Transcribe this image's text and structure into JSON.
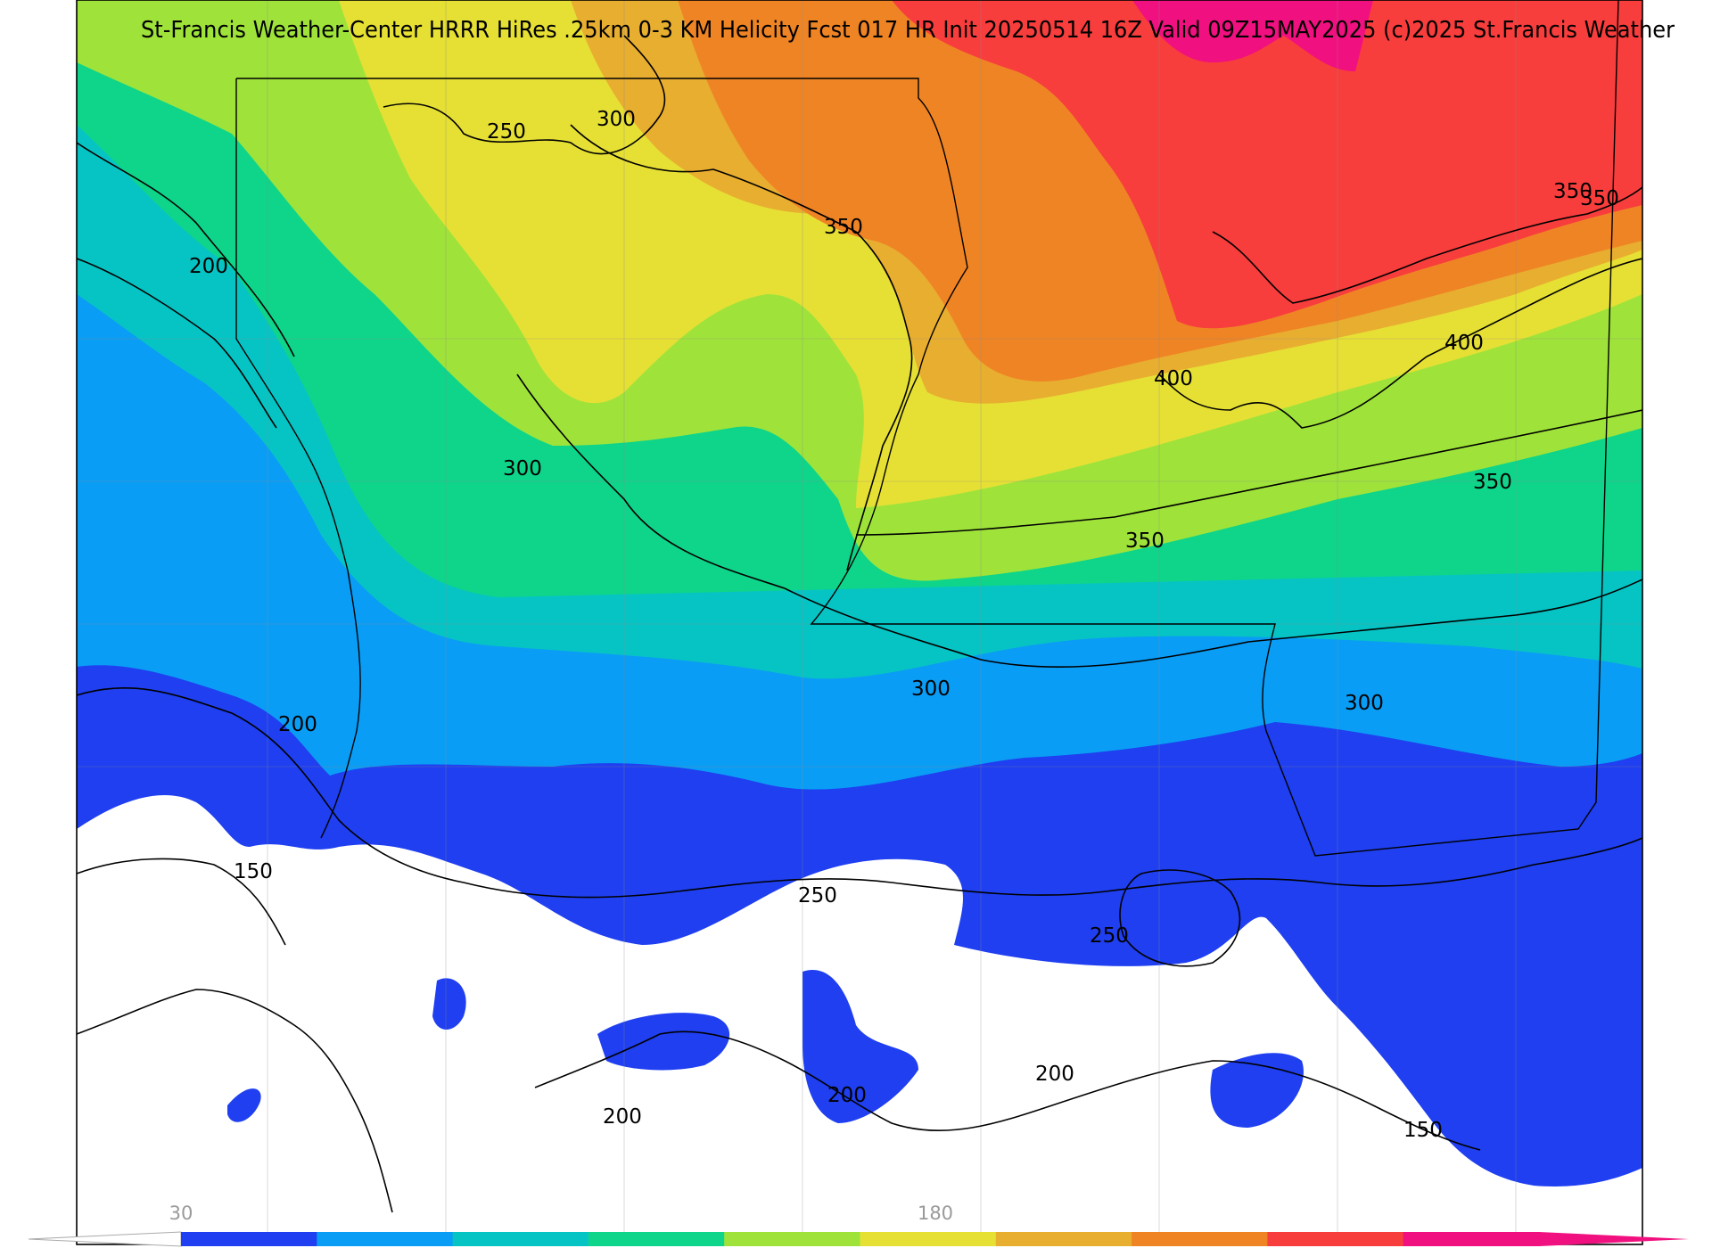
{
  "title": "St-Francis Weather-Center HRRR HiRes .25km 0-3 KM Helicity Fcst 017 HR Init 20250514 16Z  Valid 09Z15MAY2025    (c)2025 St.Francis Weather",
  "colorbar": {
    "tick_labels": [
      "30",
      "180"
    ],
    "colors": [
      "#1f3ff0",
      "#0a9df5",
      "#06c4c4",
      "#0ed58a",
      "#9fe33a",
      "#e6e035",
      "#e8ae30",
      "#ef8425",
      "#f83d3d",
      "#f0107f"
    ]
  },
  "fill_colors": {
    "none": "#ffffff",
    "blue": "#1f3ff0",
    "sky": "#0a9df5",
    "cyan": "#06c4c4",
    "teal": "#0ed58a",
    "green": "#9fe33a",
    "yellow": "#e6e035",
    "gold": "#e8ae30",
    "orange": "#ef8425",
    "red": "#f83d3d",
    "magenta": "#f0107f"
  },
  "contour_labels": [
    "250",
    "300",
    "350",
    "200",
    "300",
    "350",
    "400",
    "350",
    "400",
    "350",
    "350",
    "300",
    "300",
    "200",
    "150",
    "250",
    "250",
    "200",
    "200",
    "200",
    "150"
  ]
}
